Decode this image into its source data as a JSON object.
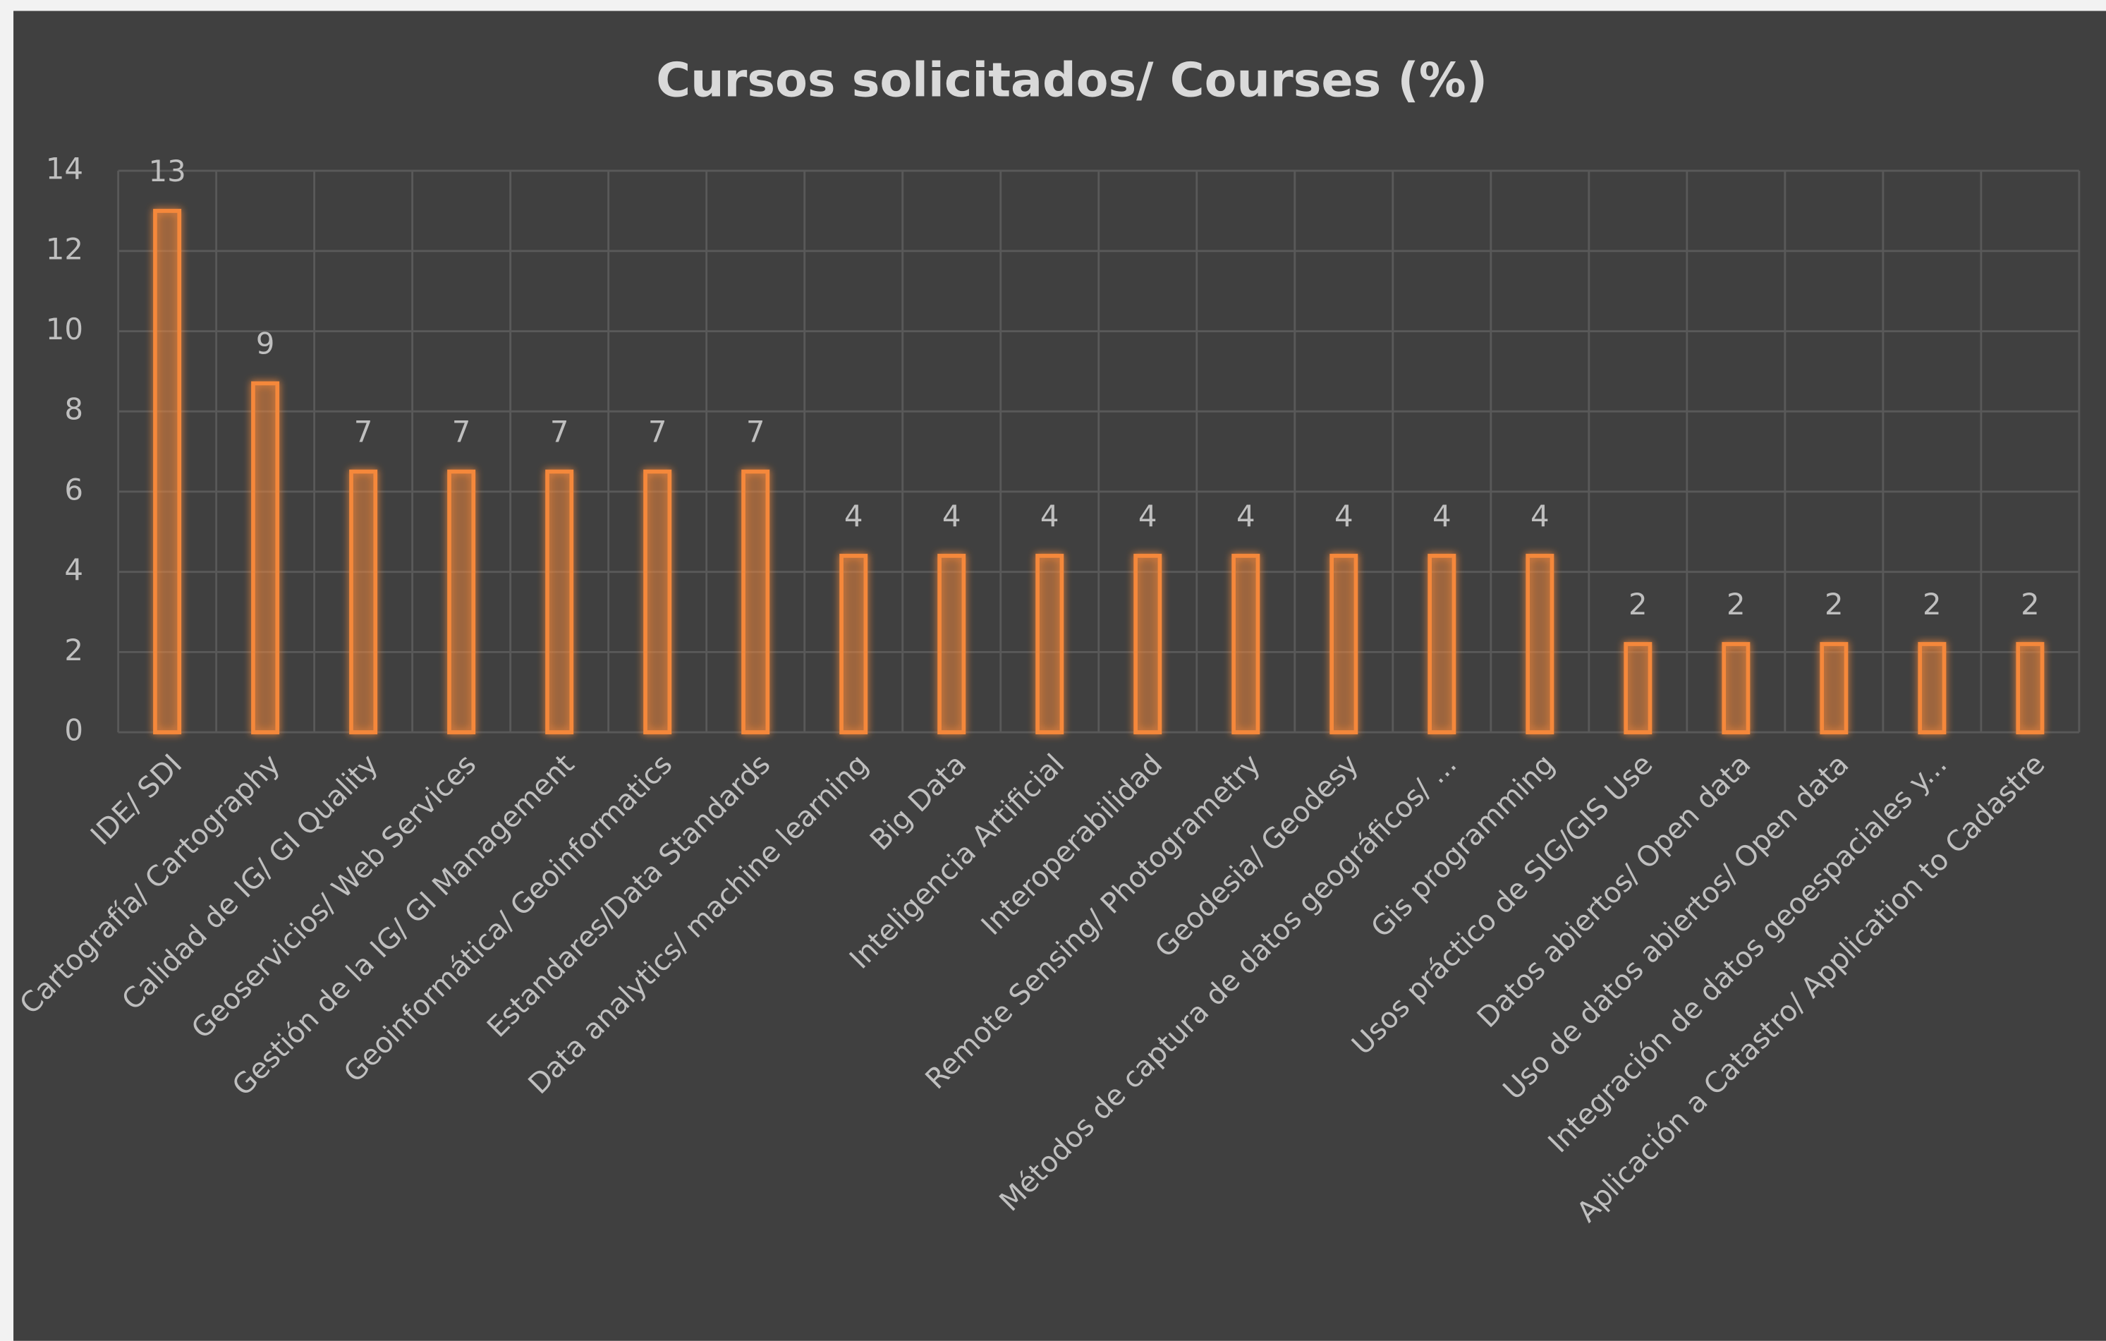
{
  "chart_data": {
    "type": "bar",
    "title": "Cursos solicitados/ Courses  (%)",
    "categories": [
      "IDE/ SDI",
      "Cartografía/ Cartography",
      "Calidad de IG/ GI Quality",
      "Geoservicios/ Web Services",
      "Gestión de la IG/ GI Management",
      "Geoinformática/ Geoinformatics",
      "Estandares/Data Standards",
      "Data analytics/ machine learning",
      "Big Data",
      "Inteligencia Artificial",
      "Interoperabilidad",
      "Remote Sensing/ Photogrametry",
      "Geodesia/ Geodesy",
      "Métodos de captura de datos geográficos/ ...",
      "Gis programming",
      "Usos práctico de SIG/GIS Use",
      "Datos abiertos/ Open data",
      "Uso de datos abiertos/ Open data",
      "Integración de datos geoespaciales y...",
      "Aplicación a  Catastro/ Application to Cadastre"
    ],
    "values": [
      13.0,
      8.7,
      6.5,
      6.5,
      6.5,
      6.5,
      6.5,
      4.4,
      4.4,
      4.4,
      4.4,
      4.4,
      4.4,
      4.4,
      4.4,
      2.2,
      2.2,
      2.2,
      2.2,
      2.2
    ],
    "value_labels": [
      "13",
      "9",
      "7",
      "7",
      "7",
      "7",
      "7",
      "4",
      "4",
      "4",
      "4",
      "4",
      "4",
      "4",
      "4",
      "2",
      "2",
      "2",
      "2",
      "2"
    ],
    "color": "#f5883a",
    "ylim": [
      0,
      14
    ],
    "yticks": [
      0,
      2,
      4,
      6,
      8,
      10,
      12,
      14
    ],
    "grid": true
  }
}
